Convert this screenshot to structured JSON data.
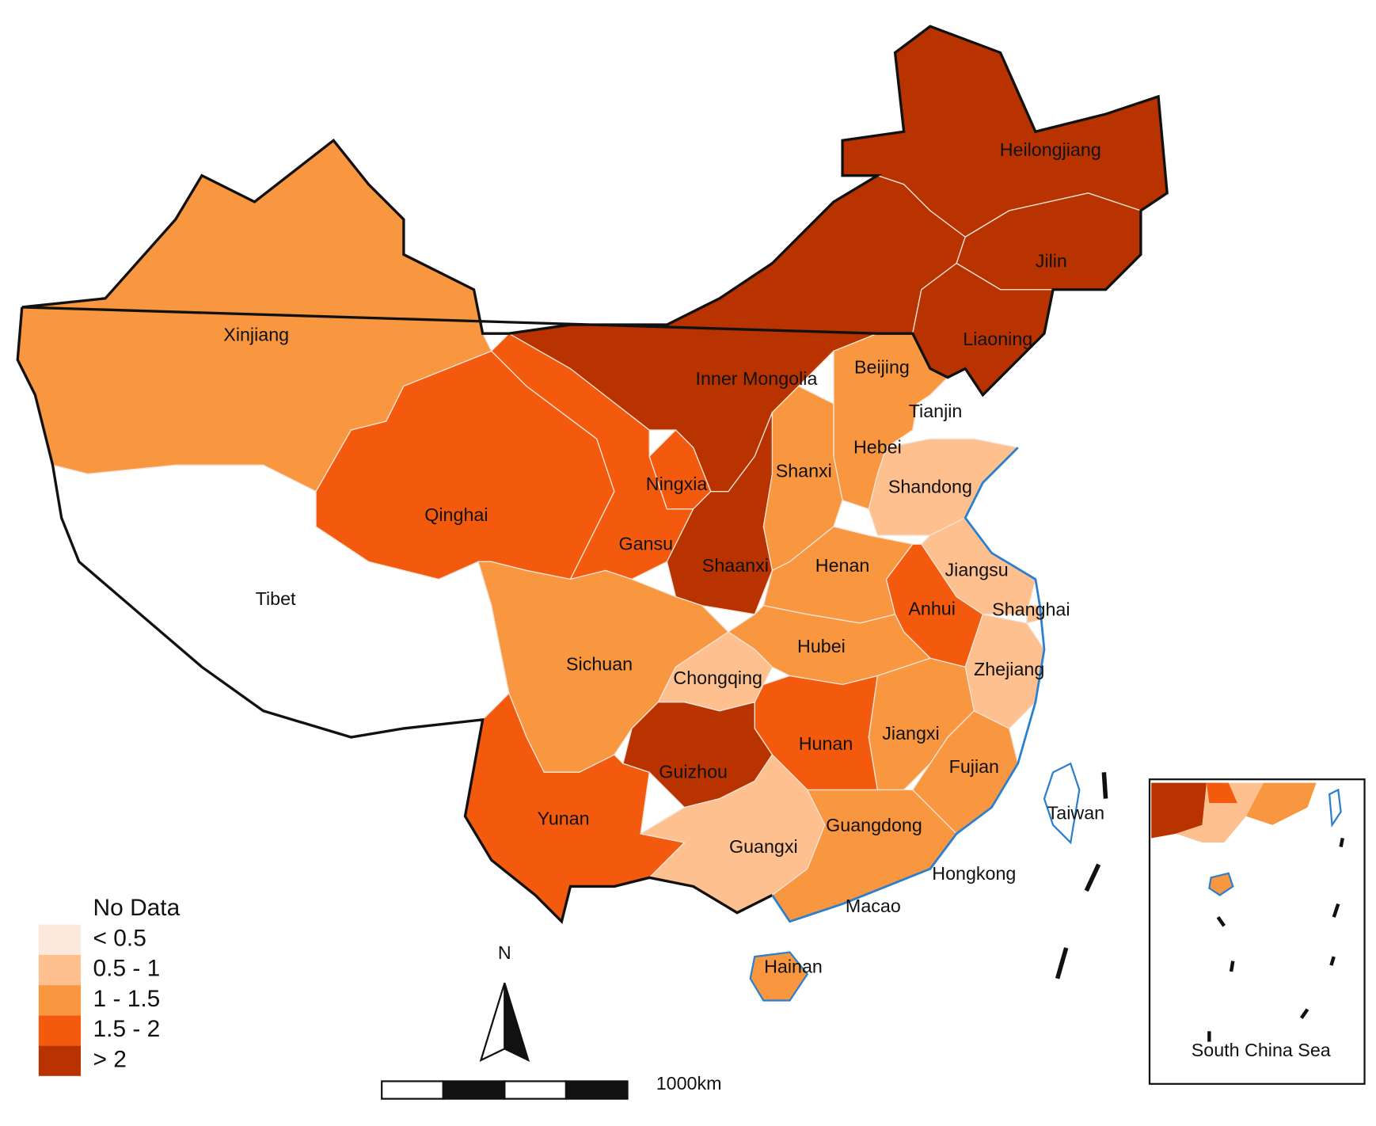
{
  "legend": {
    "classes": [
      {
        "label": "No Data",
        "color": "#ffffff"
      },
      {
        "label": "< 0.5",
        "color": "#fde9dc"
      },
      {
        "label": "0.5 - 1",
        "color": "#fdc08e"
      },
      {
        "label": "1 - 1.5",
        "color": "#f99640"
      },
      {
        "label": "1.5 - 2",
        "color": "#f35a0e"
      },
      {
        "label": "> 2",
        "color": "#b83300"
      }
    ]
  },
  "regions": [
    {
      "name": "Xinjiang",
      "class": 3
    },
    {
      "name": "Tibet",
      "class": 0
    },
    {
      "name": "Qinghai",
      "class": 4
    },
    {
      "name": "Gansu",
      "class": 4
    },
    {
      "name": "Inner Mongolia",
      "class": 5
    },
    {
      "name": "Heilongjiang",
      "class": 5
    },
    {
      "name": "Jilin",
      "class": 5
    },
    {
      "name": "Liaoning",
      "class": 5
    },
    {
      "name": "Beijing",
      "class": 2
    },
    {
      "name": "Tianjin",
      "class": 4
    },
    {
      "name": "Hebei",
      "class": 3
    },
    {
      "name": "Shanxi",
      "class": 3
    },
    {
      "name": "Shandong",
      "class": 2
    },
    {
      "name": "Ningxia",
      "class": 4
    },
    {
      "name": "Shaanxi",
      "class": 5
    },
    {
      "name": "Henan",
      "class": 3
    },
    {
      "name": "Jiangsu",
      "class": 2
    },
    {
      "name": "Anhui",
      "class": 4
    },
    {
      "name": "Shanghai",
      "class": 2
    },
    {
      "name": "Hubei",
      "class": 3
    },
    {
      "name": "Zhejiang",
      "class": 2
    },
    {
      "name": "Sichuan",
      "class": 3
    },
    {
      "name": "Chongqing",
      "class": 2
    },
    {
      "name": "Hunan",
      "class": 4
    },
    {
      "name": "Jiangxi",
      "class": 3
    },
    {
      "name": "Fujian",
      "class": 3
    },
    {
      "name": "Guizhou",
      "class": 5
    },
    {
      "name": "Yunan",
      "class": 4
    },
    {
      "name": "Guangxi",
      "class": 2
    },
    {
      "name": "Guangdong",
      "class": 3
    },
    {
      "name": "Hainan",
      "class": 3
    },
    {
      "name": "Taiwan",
      "class": 0
    }
  ],
  "other_labels": {
    "hongkong": "Hongkong",
    "macao": "Macao"
  },
  "inset_label": "South China Sea",
  "north_label": "N",
  "scale_label": "1000km"
}
